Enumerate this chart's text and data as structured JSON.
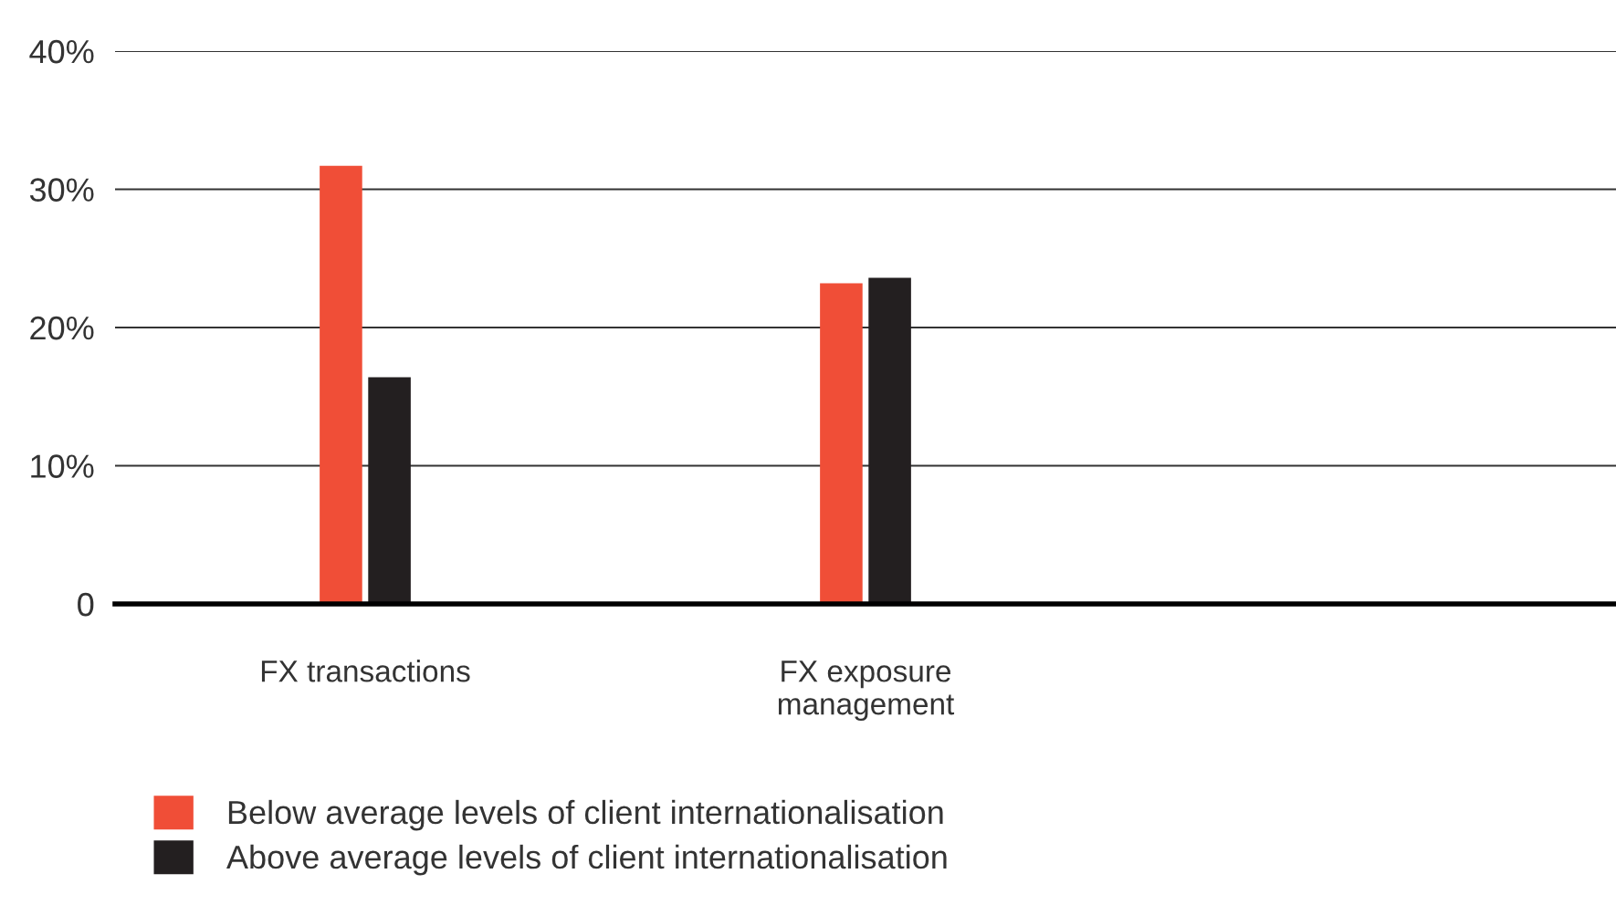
{
  "chart_data": {
    "type": "bar",
    "categories": [
      "FX transactions",
      "FX exposure\nmanagement",
      null
    ],
    "series": [
      {
        "name": "Below average levels of client internationalisation",
        "color": "#f04e37",
        "values": [
          31.7,
          23.2,
          null
        ]
      },
      {
        "name": "Above average levels of client internationalisation",
        "color": "#231f20",
        "values": [
          16.4,
          23.6,
          null
        ]
      }
    ],
    "ylim": [
      0,
      40
    ],
    "yticks": [
      {
        "value": 0,
        "label": "0"
      },
      {
        "value": 10,
        "label": "10%"
      },
      {
        "value": 20,
        "label": "20%"
      },
      {
        "value": 30,
        "label": "30%"
      },
      {
        "value": 40,
        "label": "40%"
      }
    ],
    "grid": "y",
    "legend": "bottom left"
  }
}
